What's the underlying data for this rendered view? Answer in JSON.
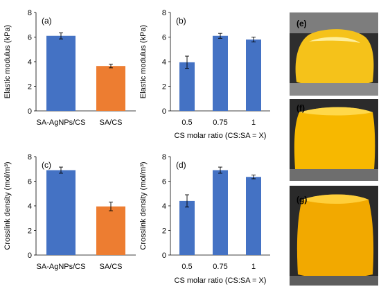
{
  "colors": {
    "blue": "#4472c4",
    "orange": "#ed7d31",
    "axis": "#000000",
    "photo_background": "#2b2b2b",
    "gel": "#f5b800"
  },
  "chart_data": [
    {
      "panel": "(a)",
      "type": "bar",
      "categories": [
        "SA-AgNPs/CS",
        "SA/CS"
      ],
      "values": [
        6.1,
        3.65
      ],
      "errors": [
        0.25,
        0.15
      ],
      "bar_colors": [
        "#4472c4",
        "#ed7d31"
      ],
      "title": "",
      "xlabel": "",
      "ylabel": "Elastic modulus (kPa)",
      "ylim": [
        0,
        8
      ],
      "yticks": [
        "0",
        "2",
        "4",
        "6",
        "8"
      ],
      "grid": false
    },
    {
      "panel": "(b)",
      "type": "bar",
      "categories": [
        "0.5",
        "0.75",
        "1"
      ],
      "values": [
        3.95,
        6.1,
        5.8
      ],
      "errors": [
        0.5,
        0.2,
        0.2
      ],
      "bar_colors": [
        "#4472c4",
        "#4472c4",
        "#4472c4"
      ],
      "title": "",
      "xlabel": "CS molar ratio (CS:SA = X)",
      "ylabel": "Elastic modulus (kPa)",
      "ylim": [
        0,
        8
      ],
      "yticks": [
        "0",
        "2",
        "4",
        "6",
        "8"
      ],
      "grid": false
    },
    {
      "panel": "(c)",
      "type": "bar",
      "categories": [
        "SA-AgNPs/CS",
        "SA/CS"
      ],
      "values": [
        6.9,
        3.95
      ],
      "errors": [
        0.25,
        0.35
      ],
      "bar_colors": [
        "#4472c4",
        "#ed7d31"
      ],
      "title": "",
      "xlabel": "",
      "ylabel": "Crosslink density (mol/m³)",
      "ylim": [
        0,
        8
      ],
      "yticks": [
        "0",
        "2",
        "4",
        "6",
        "8"
      ],
      "grid": false
    },
    {
      "panel": "(d)",
      "type": "bar",
      "categories": [
        "0.5",
        "0.75",
        "1"
      ],
      "values": [
        4.4,
        6.9,
        6.35
      ],
      "errors": [
        0.5,
        0.25,
        0.15
      ],
      "bar_colors": [
        "#4472c4",
        "#4472c4",
        "#4472c4"
      ],
      "title": "",
      "xlabel": "CS molar ratio (CS:SA = X)",
      "ylabel": "Crosslink density (mol/m³)",
      "ylim": [
        0,
        8
      ],
      "yticks": [
        "0",
        "2",
        "4",
        "6",
        "8"
      ],
      "grid": false
    }
  ],
  "photos": [
    {
      "label": "(e)"
    },
    {
      "label": "(f)"
    },
    {
      "label": "(g)"
    }
  ]
}
